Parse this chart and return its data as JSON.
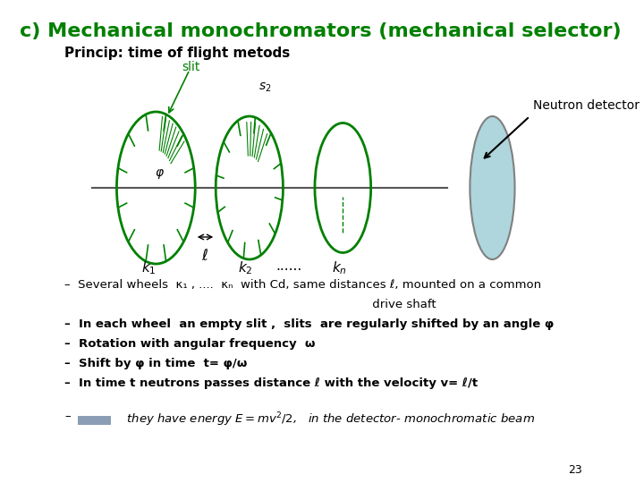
{
  "title": "c) Mechanical monochromators (mechanical selector)",
  "subtitle": "Princip: time of flight metods",
  "title_color": "#008000",
  "subtitle_color": "#000000",
  "background_color": "#ffffff",
  "bullet_points": [
    "Several wheels  κ₁ , ....  κₙ  with Cd, same distances ℓ, mounted on a common",
    "                                                                              drive shaft",
    "In each wheel  an empty slit ,  slits  are regularly shifted by an angle φ",
    "Rotation with angular frequency  ω",
    "Shift by φ in time  t= φ/ω",
    "In time t neutrons passes distance ℓ with the velocity v= ℓ/t"
  ],
  "last_bullet": "   they have energy E= mv²/2,   in the detector- monochromatic beam",
  "neutron_detector_label": "Neutron detector",
  "slit_label": "slit",
  "wheel_color": "#008000",
  "detector_fill": "#aed6dc",
  "detector_edge": "#808080",
  "arrow_color": "#000000",
  "beam_color": "#808080",
  "page_number": "23"
}
